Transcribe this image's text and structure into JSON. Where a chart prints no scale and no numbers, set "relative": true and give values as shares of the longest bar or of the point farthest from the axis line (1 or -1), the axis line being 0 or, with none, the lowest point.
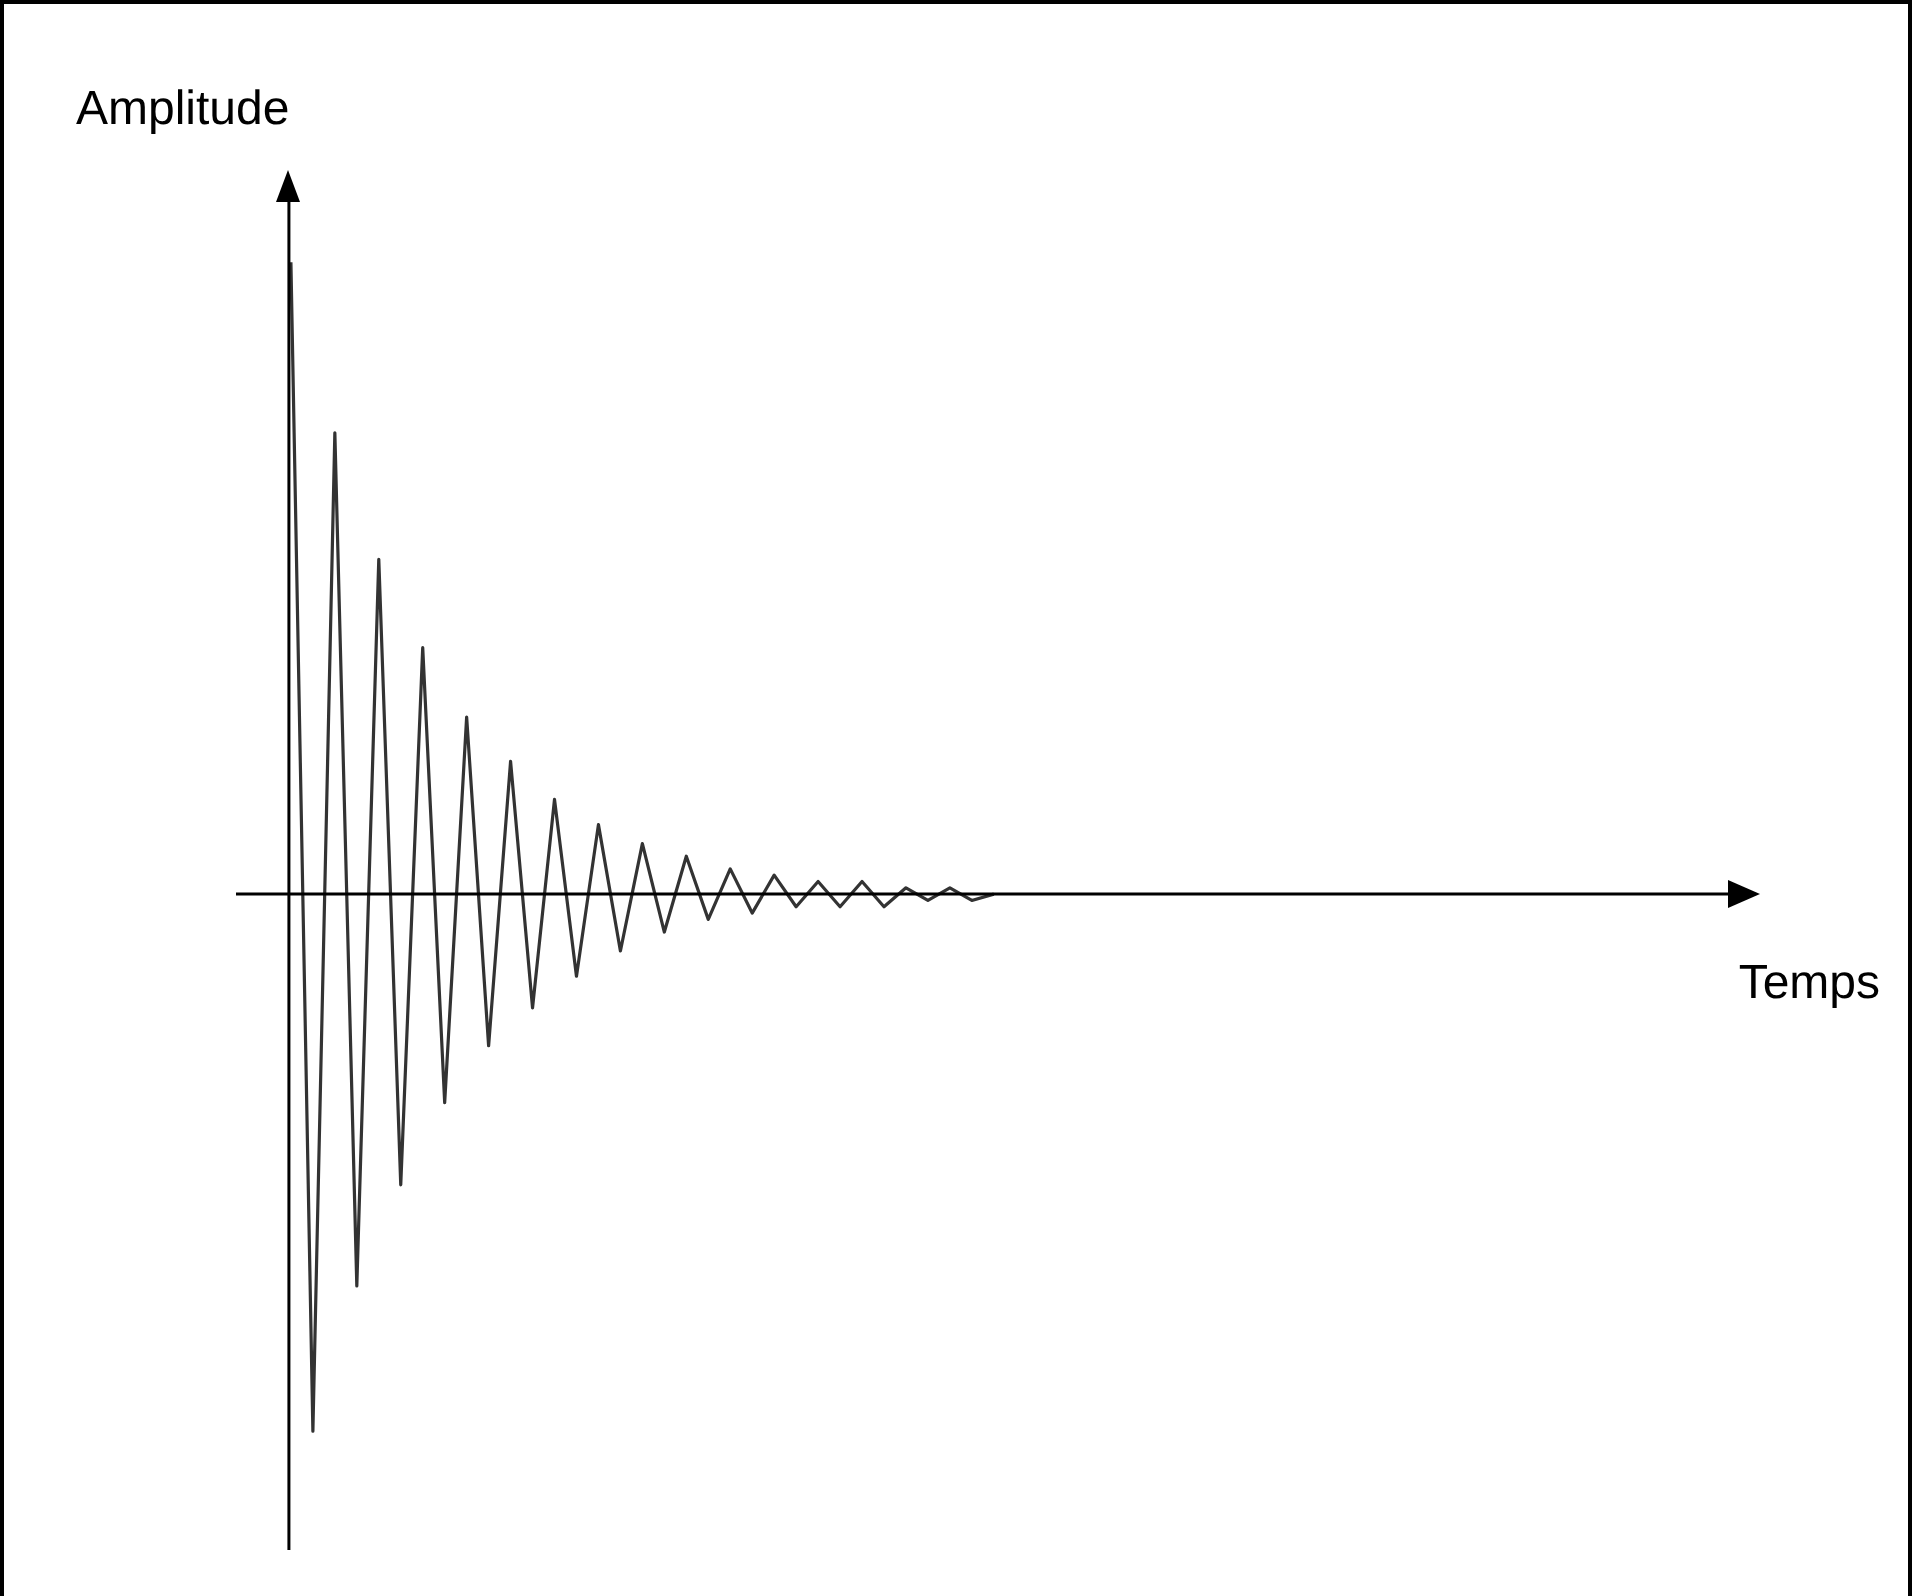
{
  "chart_data": {
    "type": "line",
    "relative": true,
    "annotations": [
      "Temps"
    ],
    "ylabel": "Amplitude",
    "color": "#333333",
    "marker": "none",
    "categories": [
      null,
      null,
      null,
      null,
      null,
      null,
      null,
      null,
      null,
      null,
      null,
      null,
      null,
      null,
      null,
      null,
      null,
      null,
      null,
      null,
      null,
      null,
      null,
      null,
      null,
      null,
      null,
      null,
      null,
      null,
      null,
      null,
      null
    ],
    "values": [
      1,
      -0.85,
      0.73,
      -0.62,
      0.53,
      -0.46,
      0.39,
      -0.33,
      0.28,
      -0.24,
      0.21,
      -0.18,
      0.15,
      -0.13,
      0.11,
      -0.09,
      0.08,
      -0.06,
      0.06,
      -0.04,
      0.04,
      -0.03,
      0.03,
      -0.02,
      0.02,
      -0.02,
      0.02,
      -0.02,
      0.01,
      -0.01,
      0.01,
      -0.01,
      0
    ]
  }
}
